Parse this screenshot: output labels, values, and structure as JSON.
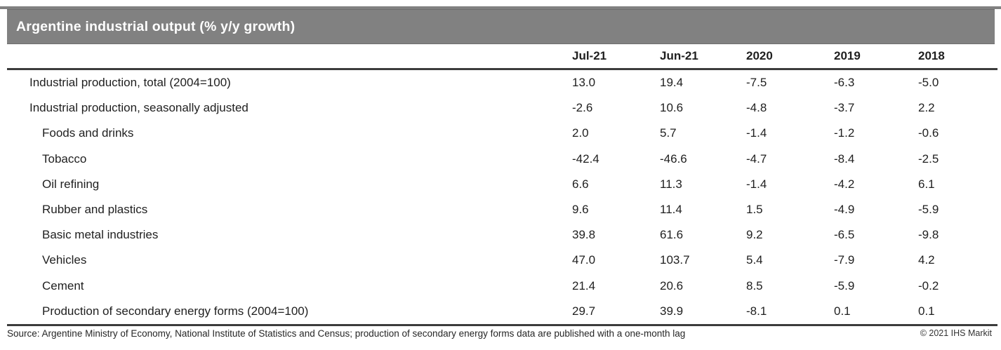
{
  "title": "Argentine industrial output (% y/y growth)",
  "table": {
    "columns": [
      "Jul-21",
      "Jun-21",
      "2020",
      "2019",
      "2018"
    ],
    "rows": [
      {
        "label": "Industrial production, total (2004=100)",
        "indent": 0,
        "values": [
          "13.0",
          "19.4",
          "-7.5",
          "-6.3",
          "-5.0"
        ]
      },
      {
        "label": "Industrial production, seasonally adjusted",
        "indent": 0,
        "values": [
          "-2.6",
          "10.6",
          "-4.8",
          "-3.7",
          "2.2"
        ]
      },
      {
        "label": "Foods and drinks",
        "indent": 1,
        "values": [
          "2.0",
          "5.7",
          "-1.4",
          "-1.2",
          "-0.6"
        ]
      },
      {
        "label": "Tobacco",
        "indent": 1,
        "values": [
          "-42.4",
          "-46.6",
          "-4.7",
          "-8.4",
          "-2.5"
        ]
      },
      {
        "label": "Oil refining",
        "indent": 1,
        "values": [
          "6.6",
          "11.3",
          "-1.4",
          "-4.2",
          "6.1"
        ]
      },
      {
        "label": "Rubber and plastics",
        "indent": 1,
        "values": [
          "9.6",
          "11.4",
          "1.5",
          "-4.9",
          "-5.9"
        ]
      },
      {
        "label": "Basic metal industries",
        "indent": 1,
        "values": [
          "39.8",
          "61.6",
          "9.2",
          "-6.5",
          "-9.8"
        ]
      },
      {
        "label": "Vehicles",
        "indent": 1,
        "values": [
          "47.0",
          "103.7",
          "5.4",
          "-7.9",
          "4.2"
        ]
      },
      {
        "label": "Cement",
        "indent": 1,
        "values": [
          "21.4",
          "20.6",
          "8.5",
          "-5.9",
          "-0.2"
        ]
      },
      {
        "label": "Production of secondary energy forms (2004=100)",
        "indent": 1,
        "values": [
          "29.7",
          "39.9",
          "-8.1",
          "0.1",
          "0.1"
        ]
      }
    ]
  },
  "footer": {
    "source": "Source: Argentine Ministry of Economy, National Institute of Statistics and Census; production of secondary energy forms data are published with a one-month lag",
    "copyright": "© 2021 IHS Markit"
  },
  "colors": {
    "title_bar": "#818181",
    "rule": "#3c3c3c",
    "text": "#1f1f1f",
    "title_text": "#ffffff"
  },
  "chart_data": {
    "type": "table",
    "title": "Argentine industrial output (% y/y growth)",
    "columns": [
      "Jul-21",
      "Jun-21",
      "2020",
      "2019",
      "2018"
    ],
    "rows": [
      {
        "label": "Industrial production, total (2004=100)",
        "values": [
          13.0,
          19.4,
          -7.5,
          -6.3,
          -5.0
        ]
      },
      {
        "label": "Industrial production, seasonally adjusted",
        "values": [
          -2.6,
          10.6,
          -4.8,
          -3.7,
          2.2
        ]
      },
      {
        "label": "Foods and drinks",
        "values": [
          2.0,
          5.7,
          -1.4,
          -1.2,
          -0.6
        ]
      },
      {
        "label": "Tobacco",
        "values": [
          -42.4,
          -46.6,
          -4.7,
          -8.4,
          -2.5
        ]
      },
      {
        "label": "Oil refining",
        "values": [
          6.6,
          11.3,
          -1.4,
          -4.2,
          6.1
        ]
      },
      {
        "label": "Rubber and plastics",
        "values": [
          9.6,
          11.4,
          1.5,
          -4.9,
          -5.9
        ]
      },
      {
        "label": "Basic metal industries",
        "values": [
          39.8,
          61.6,
          9.2,
          -6.5,
          -9.8
        ]
      },
      {
        "label": "Vehicles",
        "values": [
          47.0,
          103.7,
          5.4,
          -7.9,
          4.2
        ]
      },
      {
        "label": "Cement",
        "values": [
          21.4,
          20.6,
          8.5,
          -5.9,
          -0.2
        ]
      },
      {
        "label": "Production of secondary energy forms (2004=100)",
        "values": [
          29.7,
          39.9,
          -8.1,
          0.1,
          0.1
        ]
      }
    ],
    "source": "Source: Argentine Ministry of Economy, National Institute of Statistics and Census; production of secondary energy forms data are published with a one-month lag",
    "copyright": "© 2021 IHS Markit"
  }
}
